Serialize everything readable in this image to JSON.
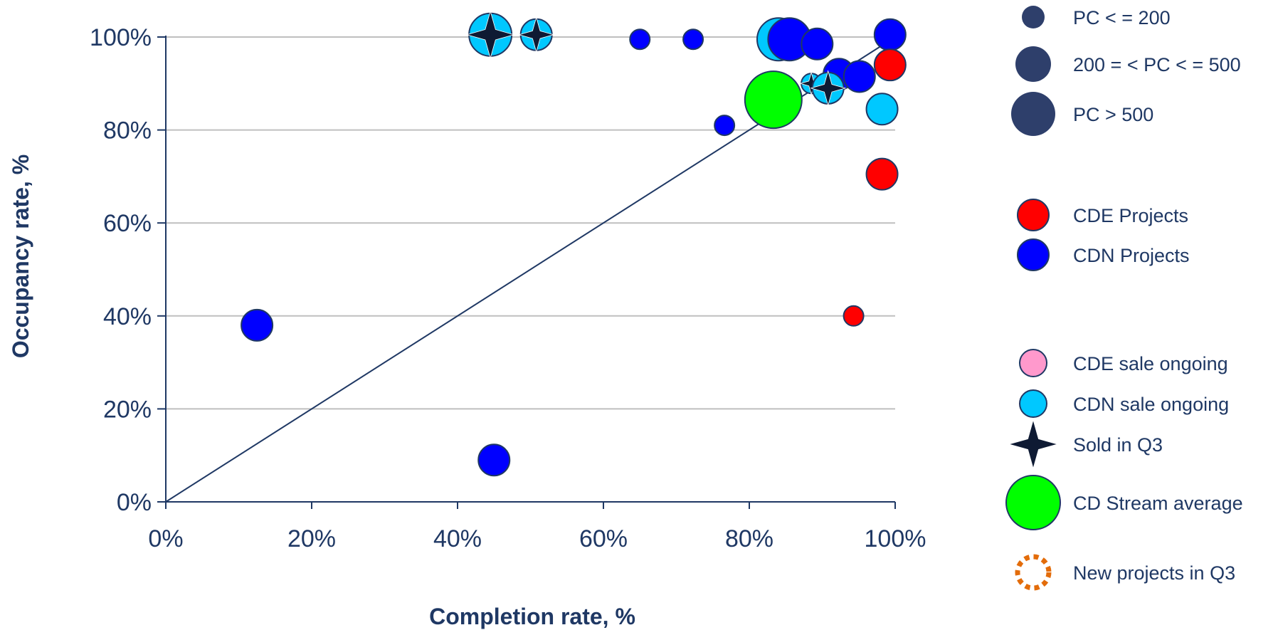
{
  "colors": {
    "axis": "#1f3864",
    "grid": "#bfbfbf",
    "size_marker": "#2e3f6b",
    "cde": "#ff0000",
    "cdn": "#0000ff",
    "cde_sale": "#ff99cc",
    "cdn_sale": "#00c8ff",
    "stream_avg": "#00ff00",
    "new_projects": "#e36c0a",
    "sold_star": "#0e1a33",
    "marker_stroke": "#1f3864"
  },
  "chart_data": {
    "type": "scatter",
    "title": "",
    "xlabel": "Completion rate, %",
    "ylabel": "Occupancy rate, %",
    "xlim": [
      0,
      100
    ],
    "ylim": [
      0,
      100
    ],
    "x_ticks": [
      "0%",
      "20%",
      "40%",
      "60%",
      "80%",
      "100%"
    ],
    "y_ticks": [
      "0%",
      "20%",
      "40%",
      "60%",
      "80%",
      "100%"
    ],
    "grid": "horizontal",
    "reference_line": {
      "from": [
        0,
        0
      ],
      "to": [
        100,
        100
      ]
    },
    "legend_placement": "right",
    "points": [
      {
        "x": 12.5,
        "y": 38,
        "size": "medium",
        "category": "cdn"
      },
      {
        "x": 45,
        "y": 9,
        "size": "medium",
        "category": "cdn"
      },
      {
        "x": 44.5,
        "y": 100.5,
        "size": "large",
        "category": "cdn_sale",
        "sold": true
      },
      {
        "x": 50.8,
        "y": 100.5,
        "size": "medium",
        "category": "cdn_sale",
        "sold": true
      },
      {
        "x": 65,
        "y": 99.5,
        "size": "small",
        "category": "cdn"
      },
      {
        "x": 72.3,
        "y": 99.5,
        "size": "small",
        "category": "cdn"
      },
      {
        "x": 76.6,
        "y": 81,
        "size": "small",
        "category": "cdn"
      },
      {
        "x": 84,
        "y": 99.5,
        "size": "large",
        "category": "cdn_sale"
      },
      {
        "x": 85.5,
        "y": 99.5,
        "size": "large",
        "category": "cdn"
      },
      {
        "x": 89.3,
        "y": 98.5,
        "size": "medium",
        "category": "cdn"
      },
      {
        "x": 92.3,
        "y": 92,
        "size": "medium",
        "category": "cdn"
      },
      {
        "x": 95.1,
        "y": 91.5,
        "size": "medium",
        "category": "cdn"
      },
      {
        "x": 88.5,
        "y": 90,
        "size": "small",
        "category": "cdn_sale",
        "sold": true
      },
      {
        "x": 90.8,
        "y": 89,
        "size": "medium",
        "category": "cdn_sale",
        "sold": true
      },
      {
        "x": 83.3,
        "y": 86.5,
        "size": "xlarge",
        "category": "stream_avg"
      },
      {
        "x": 99.3,
        "y": 100.5,
        "size": "medium",
        "category": "cdn"
      },
      {
        "x": 99.3,
        "y": 94,
        "size": "medium",
        "category": "cde"
      },
      {
        "x": 98.2,
        "y": 84.5,
        "size": "medium",
        "category": "cdn_sale"
      },
      {
        "x": 98.2,
        "y": 70.5,
        "size": "medium",
        "category": "cde"
      },
      {
        "x": 94.3,
        "y": 40,
        "size": "small",
        "category": "cde"
      }
    ]
  },
  "legend": {
    "size_items": [
      {
        "label": "PC < = 200",
        "size": "small"
      },
      {
        "label": "200 = < PC < = 500",
        "size": "medium"
      },
      {
        "label": "PC > 500",
        "size": "large"
      }
    ],
    "category_items": [
      {
        "label": "CDE Projects",
        "category": "cde"
      },
      {
        "label": "CDN Projects",
        "category": "cdn"
      }
    ],
    "status_items": [
      {
        "label": "CDE sale ongoing",
        "kind": "cde_sale"
      },
      {
        "label": "CDN sale ongoing",
        "kind": "cdn_sale"
      },
      {
        "label": "Sold in Q3",
        "kind": "sold"
      },
      {
        "label": "CD Stream average",
        "kind": "stream_avg"
      },
      {
        "label": "New projects in Q3",
        "kind": "new_projects"
      }
    ]
  }
}
